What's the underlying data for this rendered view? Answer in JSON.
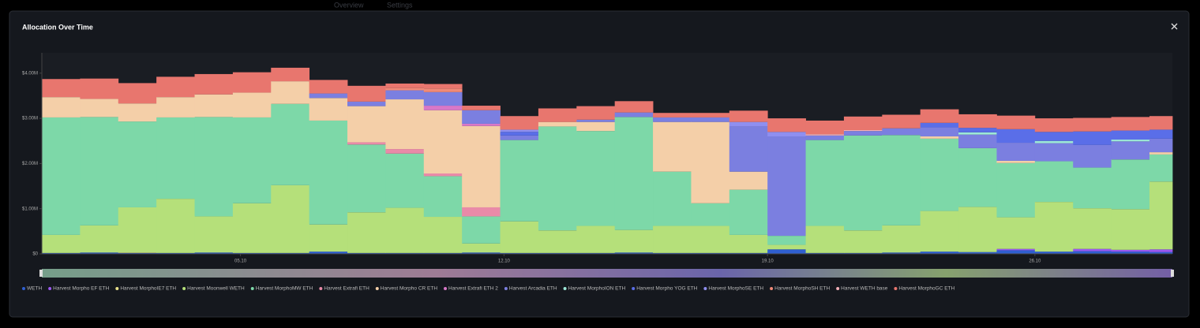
{
  "nav": [
    "Overview",
    "Settings"
  ],
  "chart_data": {
    "type": "stacked-step-area",
    "title": "Allocation Over Time",
    "x": [
      0,
      1,
      2,
      3,
      4,
      5,
      6,
      7,
      8,
      9,
      10,
      11,
      12,
      13,
      14,
      15,
      16,
      17,
      18,
      19,
      20,
      21,
      22,
      23,
      24,
      25,
      26,
      27,
      28,
      29
    ],
    "xlim": [
      0,
      29.6
    ],
    "xticks": [
      {
        "value": 5.2,
        "label": "05.10"
      },
      {
        "value": 12.1,
        "label": "12.10"
      },
      {
        "value": 19.0,
        "label": "19.10"
      },
      {
        "value": 26.0,
        "label": "26.10"
      }
    ],
    "ylim": [
      0,
      4450000
    ],
    "yticks": [
      {
        "value": 0,
        "label": "$0"
      },
      {
        "value": 1000000,
        "label": "$1.00M"
      },
      {
        "value": 2000000,
        "label": "$2.00M"
      },
      {
        "value": 3000000,
        "label": "$3.00M"
      },
      {
        "value": 4000000,
        "label": "$4.00M"
      }
    ],
    "series": [
      {
        "name": "WETH",
        "color": "#2f5fd0",
        "values": [
          20000,
          30000,
          20000,
          20000,
          30000,
          20000,
          20000,
          50000,
          20000,
          20000,
          20000,
          30000,
          20000,
          20000,
          20000,
          30000,
          20000,
          20000,
          20000,
          100000,
          20000,
          20000,
          30000,
          50000,
          40000,
          80000,
          50000,
          60000,
          50000,
          40000
        ]
      },
      {
        "name": "Harvest Morpho EF ETH",
        "color": "#9b59f0",
        "values": [
          0,
          0,
          0,
          0,
          0,
          0,
          0,
          0,
          0,
          0,
          0,
          0,
          0,
          0,
          0,
          0,
          0,
          0,
          0,
          0,
          0,
          0,
          0,
          0,
          0,
          30000,
          0,
          50000,
          40000,
          60000
        ]
      },
      {
        "name": "Harvest MorphoIE7 ETH",
        "color": "#e8e08a",
        "values": [
          0,
          0,
          10000,
          0,
          0,
          0,
          0,
          0,
          0,
          0,
          0,
          0,
          0,
          0,
          0,
          0,
          0,
          0,
          0,
          0,
          0,
          0,
          0,
          0,
          0,
          0,
          0,
          0,
          0,
          0
        ]
      },
      {
        "name": "Harvest Moonwell WETH",
        "color": "#b5e07a",
        "values": [
          400000,
          600000,
          1000000,
          1200000,
          800000,
          1100000,
          1500000,
          600000,
          900000,
          1000000,
          800000,
          200000,
          700000,
          500000,
          600000,
          500000,
          600000,
          600000,
          400000,
          100000,
          600000,
          500000,
          600000,
          900000,
          1000000,
          700000,
          1100000,
          900000,
          900000,
          1500000
        ]
      },
      {
        "name": "Harvest MorphoMW ETH",
        "color": "#7dd8a8",
        "values": [
          2600000,
          2400000,
          1900000,
          1800000,
          2200000,
          1900000,
          1800000,
          2300000,
          1500000,
          1200000,
          900000,
          600000,
          1800000,
          2300000,
          2100000,
          2500000,
          1200000,
          500000,
          1000000,
          200000,
          1900000,
          2100000,
          2000000,
          1600000,
          1300000,
          1200000,
          900000,
          900000,
          1100000,
          600000
        ]
      },
      {
        "name": "Harvest Extrafi ETH",
        "color": "#e98aa8",
        "values": [
          0,
          0,
          0,
          0,
          0,
          0,
          0,
          0,
          50000,
          100000,
          60000,
          200000,
          0,
          0,
          0,
          0,
          0,
          0,
          0,
          0,
          0,
          0,
          0,
          0,
          0,
          0,
          0,
          0,
          0,
          0
        ]
      },
      {
        "name": "Harvest Morpho CR ETH",
        "color": "#f4cfa8",
        "values": [
          450000,
          400000,
          400000,
          450000,
          500000,
          550000,
          500000,
          500000,
          800000,
          1100000,
          1400000,
          1800000,
          0,
          100000,
          200000,
          0,
          1100000,
          1800000,
          400000,
          0,
          0,
          0,
          0,
          50000,
          0,
          50000,
          0,
          0,
          0,
          50000
        ]
      },
      {
        "name": "Harvest Extrafi ETH 2",
        "color": "#d878c8",
        "values": [
          0,
          0,
          0,
          0,
          0,
          0,
          0,
          0,
          0,
          0,
          100000,
          50000,
          0,
          0,
          0,
          0,
          0,
          0,
          0,
          0,
          0,
          0,
          0,
          0,
          0,
          0,
          0,
          0,
          0,
          0
        ]
      },
      {
        "name": "Harvest Arcadia ETH",
        "color": "#7b7fe0",
        "values": [
          0,
          0,
          0,
          0,
          0,
          0,
          0,
          100000,
          100000,
          200000,
          300000,
          300000,
          100000,
          0,
          50000,
          100000,
          100000,
          100000,
          1000000,
          2200000,
          100000,
          100000,
          150000,
          200000,
          300000,
          400000,
          400000,
          500000,
          400000,
          300000
        ]
      },
      {
        "name": "Harvest MorphoION ETH",
        "color": "#9de8d8",
        "values": [
          0,
          0,
          0,
          0,
          0,
          0,
          0,
          0,
          0,
          0,
          0,
          0,
          0,
          0,
          0,
          0,
          0,
          0,
          0,
          0,
          0,
          0,
          0,
          0,
          50000,
          0,
          50000,
          0,
          40000,
          0
        ]
      },
      {
        "name": "Harvest Morpho YOG ETH",
        "color": "#5a6ee8",
        "values": [
          0,
          0,
          0,
          0,
          0,
          0,
          0,
          0,
          0,
          0,
          0,
          0,
          80000,
          0,
          0,
          0,
          0,
          0,
          0,
          0,
          0,
          0,
          0,
          100000,
          100000,
          300000,
          200000,
          300000,
          200000,
          200000
        ]
      },
      {
        "name": "Harvest MorphoSE ETH",
        "color": "#8f8ff0",
        "values": [
          0,
          0,
          0,
          0,
          0,
          0,
          0,
          0,
          0,
          0,
          0,
          0,
          50000,
          0,
          0,
          0,
          0,
          0,
          100000,
          100000,
          0,
          0,
          0,
          0,
          0,
          0,
          0,
          0,
          0,
          0
        ]
      },
      {
        "name": "Harvest MorphoSH ETH",
        "color": "#f08a78",
        "values": [
          0,
          0,
          0,
          0,
          0,
          0,
          0,
          0,
          0,
          50000,
          80000,
          0,
          0,
          0,
          0,
          0,
          0,
          0,
          0,
          0,
          0,
          0,
          0,
          0,
          0,
          0,
          0,
          0,
          0,
          0
        ]
      },
      {
        "name": "Harvest WETH base",
        "color": "#f4b0b8",
        "values": [
          0,
          0,
          0,
          0,
          0,
          0,
          0,
          0,
          0,
          0,
          0,
          0,
          0,
          0,
          0,
          0,
          0,
          0,
          0,
          0,
          30000,
          20000,
          0,
          0,
          0,
          0,
          0,
          0,
          0,
          0
        ]
      },
      {
        "name": "Harvest MorphoGC ETH",
        "color": "#e8766e",
        "values": [
          400000,
          450000,
          450000,
          450000,
          450000,
          450000,
          300000,
          300000,
          350000,
          100000,
          100000,
          100000,
          300000,
          300000,
          300000,
          250000,
          100000,
          100000,
          250000,
          300000,
          300000,
          300000,
          300000,
          300000,
          300000,
          300000,
          300000,
          300000,
          300000,
          300000
        ]
      }
    ]
  }
}
